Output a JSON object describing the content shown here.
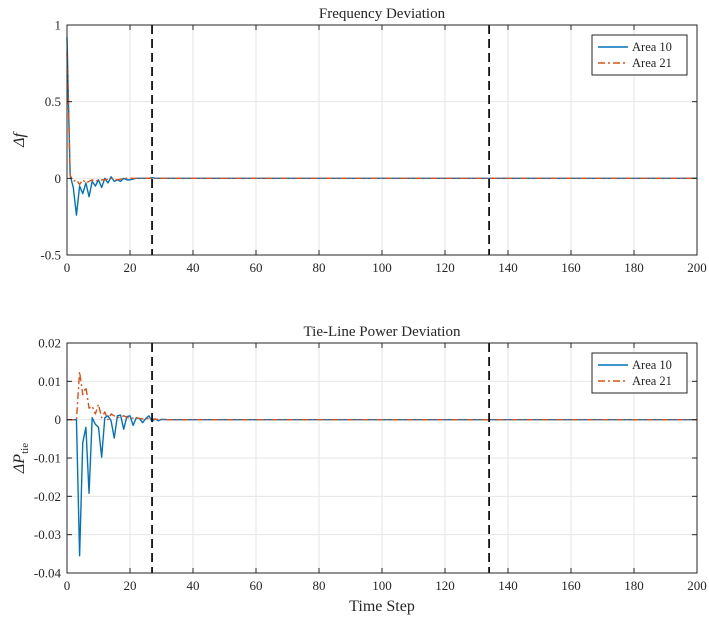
{
  "chart_data": [
    {
      "type": "line",
      "title": "Frequency Deviation",
      "xlabel": "",
      "ylabel": "Δf",
      "xlim": [
        0,
        200
      ],
      "ylim": [
        -0.5,
        1
      ],
      "xticks": [
        0,
        20,
        40,
        60,
        80,
        100,
        120,
        140,
        160,
        180,
        200
      ],
      "xtick_labels": [
        "0",
        "20",
        "40",
        "60",
        "80",
        "100",
        "120",
        "140",
        "160",
        "180",
        "200"
      ],
      "yticks": [
        -0.5,
        0,
        0.5,
        1
      ],
      "ytick_labels": [
        "-0.5",
        "0",
        "0.5",
        "1"
      ],
      "grid": true,
      "legend_position": "top-right",
      "vlines": [
        27,
        134
      ],
      "series": [
        {
          "name": "Area 10",
          "color": "#0072BD",
          "style": "solid",
          "x": [
            0,
            1,
            2,
            3,
            4,
            5,
            6,
            7,
            8,
            9,
            10,
            11,
            12,
            13,
            14,
            15,
            16,
            17,
            18,
            19,
            20,
            22,
            24,
            26,
            27,
            28,
            30,
            200
          ],
          "y": [
            0.92,
            0.02,
            -0.06,
            -0.24,
            -0.05,
            -0.1,
            -0.03,
            -0.12,
            -0.02,
            -0.05,
            -0.01,
            -0.06,
            0.0,
            -0.03,
            0.01,
            -0.02,
            -0.01,
            -0.02,
            0.0,
            -0.01,
            -0.01,
            0.0,
            0.0,
            0.0,
            0.005,
            0.0,
            0.0,
            0.0
          ]
        },
        {
          "name": "Area 21",
          "color": "#D95319",
          "style": "dashdot",
          "x": [
            0,
            1,
            2,
            3,
            4,
            5,
            6,
            7,
            8,
            9,
            10,
            12,
            14,
            16,
            18,
            20,
            25,
            30,
            200
          ],
          "y": [
            0.82,
            0.02,
            -0.02,
            -0.01,
            -0.04,
            -0.01,
            -0.03,
            -0.02,
            -0.01,
            -0.02,
            -0.01,
            -0.01,
            0.0,
            -0.01,
            0.0,
            0.0,
            0.0,
            0.0,
            0.0
          ]
        }
      ]
    },
    {
      "type": "line",
      "title": "Tie-Line Power Deviation",
      "xlabel": "Time Step",
      "ylabel": "ΔP",
      "ylabel_sub": "tie",
      "xlim": [
        0,
        200
      ],
      "ylim": [
        -0.04,
        0.02
      ],
      "xticks": [
        0,
        20,
        40,
        60,
        80,
        100,
        120,
        140,
        160,
        180,
        200
      ],
      "xtick_labels": [
        "0",
        "20",
        "40",
        "60",
        "80",
        "100",
        "120",
        "140",
        "160",
        "180",
        "200"
      ],
      "yticks": [
        -0.04,
        -0.03,
        -0.02,
        -0.01,
        0,
        0.01,
        0.02
      ],
      "ytick_labels": [
        "-0.04",
        "-0.03",
        "-0.02",
        "-0.01",
        "0",
        "0.01",
        "0.02"
      ],
      "grid": true,
      "legend_position": "top-right",
      "vlines": [
        27,
        134
      ],
      "series": [
        {
          "name": "Area 10",
          "color": "#0072BD",
          "style": "solid",
          "x": [
            0,
            3,
            4,
            5,
            6,
            7,
            8,
            9,
            10,
            11,
            12,
            13,
            14,
            15,
            16,
            17,
            18,
            19,
            20,
            21,
            22,
            23,
            24,
            25,
            26,
            27,
            28,
            29,
            30,
            32,
            200
          ],
          "y": [
            0,
            0,
            -0.0355,
            -0.006,
            -0.002,
            -0.0192,
            0.0005,
            -0.0012,
            -0.002,
            -0.0098,
            0.0005,
            0.001,
            -0.0003,
            -0.0048,
            0.001,
            0.0012,
            -0.0025,
            0.0008,
            0.001,
            -0.0015,
            0.0005,
            0.0003,
            -0.0008,
            0.0003,
            0.001,
            -0.0005,
            0.0002,
            -0.0003,
            0.0001,
            0.0,
            0.0
          ]
        },
        {
          "name": "Area 21",
          "color": "#D95319",
          "style": "dashdot",
          "x": [
            0,
            3,
            4,
            5,
            6,
            7,
            8,
            9,
            10,
            11,
            12,
            13,
            14,
            16,
            18,
            20,
            22,
            24,
            26,
            28,
            30,
            200
          ],
          "y": [
            0,
            0,
            0.0125,
            0.0065,
            0.0085,
            0.003,
            0.0035,
            0.0015,
            0.004,
            0.0005,
            0.002,
            0.0,
            0.0015,
            0.0005,
            0.001,
            0.0003,
            0.0005,
            0.0002,
            0.0003,
            0.0001,
            0.0,
            0.0
          ]
        }
      ]
    }
  ]
}
